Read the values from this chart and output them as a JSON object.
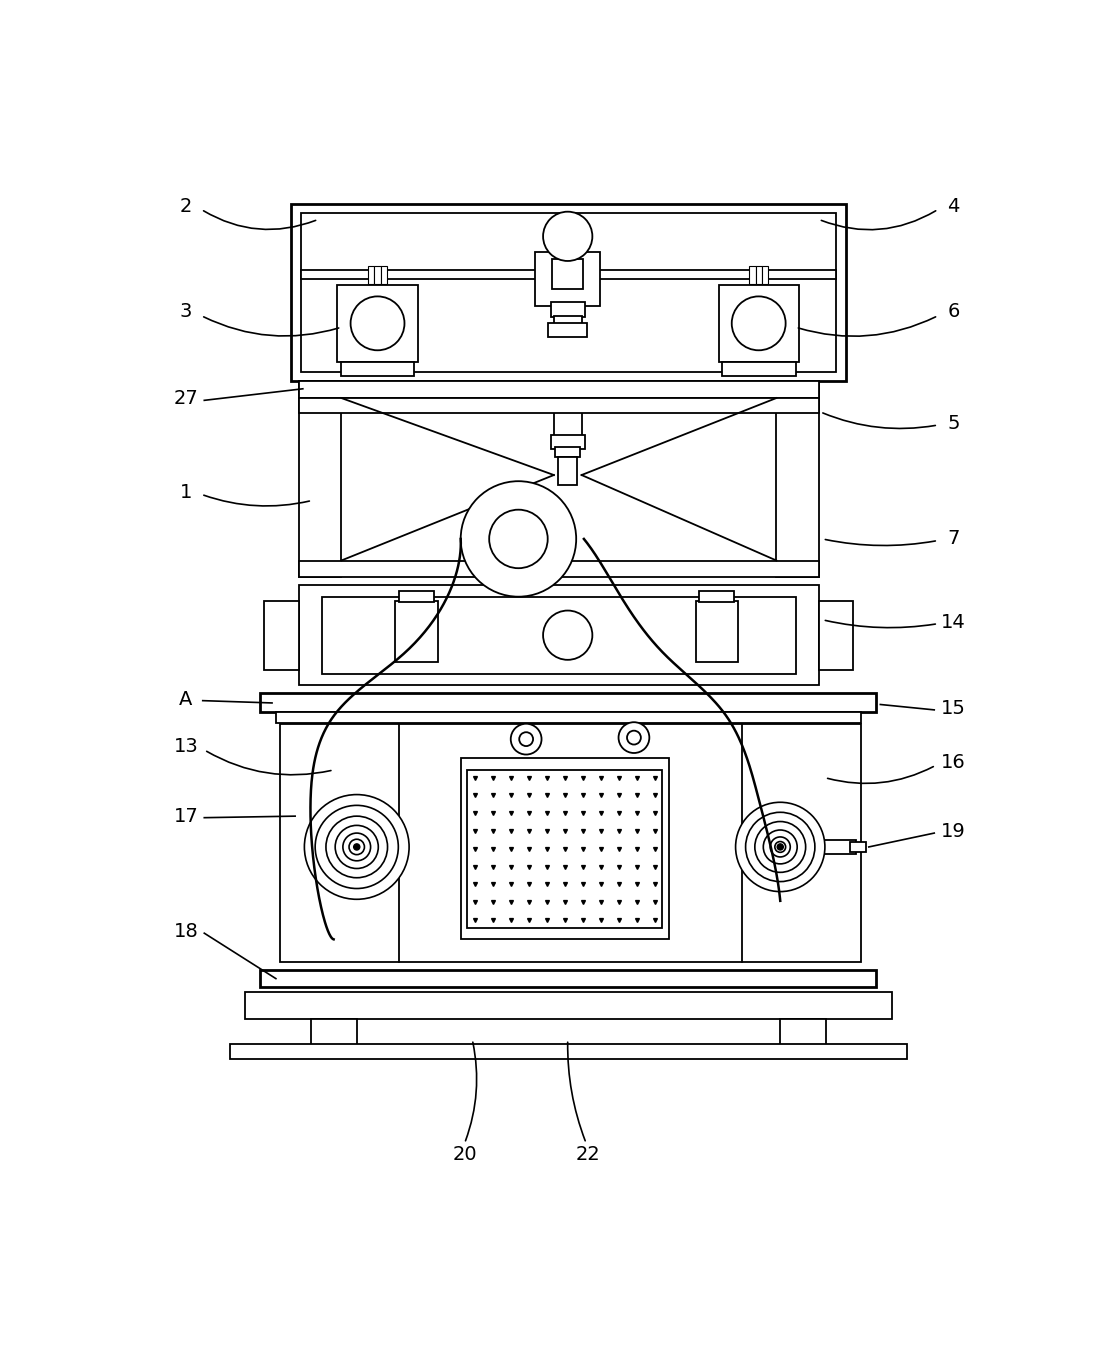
{
  "bg_color": "#ffffff",
  "lw": 1.3,
  "fig_width": 11.07,
  "fig_height": 13.47,
  "dpi": 100
}
